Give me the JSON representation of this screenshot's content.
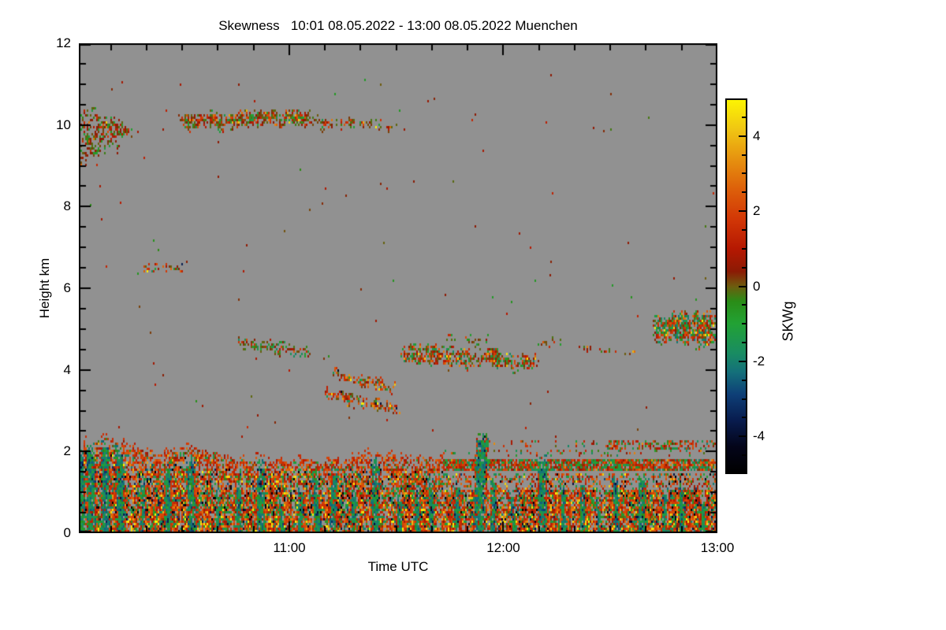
{
  "colors": {
    "page_background": "#ffffff",
    "plot_background": "#919191",
    "frame": "#000000",
    "text": "#000000"
  },
  "chart_data": {
    "type": "heatmap",
    "title": "Skewness   10:01 08.05.2022 - 13:00 08.05.2022 Muenchen",
    "site": "Muenchen",
    "time_start": "10:01 08.05.2022",
    "time_end": "13:00 08.05.2022",
    "xlabel": "Time UTC",
    "ylabel": "Height km",
    "x_range_minutes_utc": [
      601,
      780
    ],
    "x_ticks": [
      {
        "minute": 660,
        "label": "11:00"
      },
      {
        "minute": 720,
        "label": "12:00"
      },
      {
        "minute": 780,
        "label": "13:00"
      }
    ],
    "x_minor_step_minutes": 10,
    "y_range_km": [
      0,
      12
    ],
    "y_ticks": [
      {
        "km": 0,
        "label": "0"
      },
      {
        "km": 2,
        "label": "2"
      },
      {
        "km": 4,
        "label": "4"
      },
      {
        "km": 6,
        "label": "6"
      },
      {
        "km": 8,
        "label": "8"
      },
      {
        "km": 10,
        "label": "10"
      },
      {
        "km": 12,
        "label": "12"
      }
    ],
    "y_minor_step_km": 0.5,
    "colorbar": {
      "label": "SKWg",
      "range": [
        -5,
        5
      ],
      "ticks": [
        {
          "value": 4,
          "label": "4"
        },
        {
          "value": 2,
          "label": "2"
        },
        {
          "value": 0,
          "label": "0"
        },
        {
          "value": -2,
          "label": "-2"
        },
        {
          "value": -4,
          "label": "-4"
        }
      ],
      "minor_step": 0.5,
      "gradient_stops": [
        [
          0.0,
          "#000000"
        ],
        [
          0.07,
          "#04051a"
        ],
        [
          0.14,
          "#081c4e"
        ],
        [
          0.21,
          "#0e3f77"
        ],
        [
          0.27,
          "#14707a"
        ],
        [
          0.32,
          "#198c62"
        ],
        [
          0.4,
          "#22a234"
        ],
        [
          0.46,
          "#2a8c17"
        ],
        [
          0.5,
          "#6e5c0e"
        ],
        [
          0.54,
          "#8c1a04"
        ],
        [
          0.6,
          "#b51802"
        ],
        [
          0.68,
          "#d23706"
        ],
        [
          0.76,
          "#dd5f0a"
        ],
        [
          0.84,
          "#e6910f"
        ],
        [
          0.92,
          "#f0c513"
        ],
        [
          1.0,
          "#fcf403"
        ]
      ]
    },
    "clouds": [
      {
        "t0": 601,
        "t1": 616,
        "top0": 10.45,
        "top1": 10.05,
        "bot0": 9.05,
        "bot1": 9.75,
        "density": 0.5,
        "palette": "olive",
        "ragged_bottom": 0.6
      },
      {
        "t0": 629,
        "t1": 666,
        "top0": 10.3,
        "top1": 10.35,
        "bot0": 9.95,
        "bot1": 10.0,
        "density": 0.8,
        "palette": "oliveRed",
        "ragged_bottom": 0.15
      },
      {
        "t0": 666,
        "t1": 686,
        "top0": 10.22,
        "top1": 10.12,
        "bot0": 9.92,
        "bot1": 9.96,
        "density": 0.6,
        "palette": "oliveRed",
        "ragged_bottom": 0.1
      },
      {
        "t0": 686,
        "t1": 693,
        "top0": 10.02,
        "top1": 9.96,
        "bot0": 9.86,
        "bot1": 9.86,
        "density": 0.5,
        "palette": "olive",
        "ragged_bottom": 0
      },
      {
        "t0": 619,
        "t1": 631,
        "top0": 6.62,
        "top1": 6.55,
        "bot0": 6.38,
        "bot1": 6.45,
        "density": 0.7,
        "palette": "redOlive",
        "ragged_bottom": 0
      },
      {
        "t0": 645,
        "t1": 666,
        "top0": 4.85,
        "top1": 4.55,
        "bot0": 4.55,
        "bot1": 4.3,
        "density": 0.65,
        "palette": "greenOlive",
        "ragged_bottom": 0.1
      },
      {
        "t0": 672,
        "t1": 690,
        "top0": 4.05,
        "top1": 3.65,
        "bot0": 3.82,
        "bot1": 3.42,
        "density": 0.7,
        "palette": "redOlive",
        "ragged_bottom": 0.05
      },
      {
        "t0": 670,
        "t1": 691,
        "top0": 3.55,
        "top1": 3.1,
        "bot0": 3.32,
        "bot1": 2.87,
        "density": 0.7,
        "palette": "redOlive",
        "ragged_bottom": 0.05
      },
      {
        "t0": 691,
        "t1": 730,
        "top0": 4.68,
        "top1": 4.35,
        "bot0": 4.22,
        "bot1": 4.05,
        "density": 0.72,
        "palette": "oliveRedGreen",
        "ragged_bottom": 0.15
      },
      {
        "t0": 703,
        "t1": 716,
        "top0": 4.92,
        "top1": 4.75,
        "bot0": 4.68,
        "bot1": 4.45,
        "density": 0.22,
        "palette": "olive",
        "ragged_bottom": 0
      },
      {
        "t0": 729,
        "t1": 757,
        "top0": 4.8,
        "top1": 4.45,
        "bot0": 4.62,
        "bot1": 4.3,
        "density": 0.3,
        "palette": "oliveRed",
        "ragged_bottom": 0
      },
      {
        "t0": 762,
        "t1": 780,
        "top0": 5.35,
        "top1": 5.45,
        "bot0": 4.75,
        "bot1": 4.6,
        "density": 0.78,
        "palette": "greenRed",
        "ragged_bottom": 0.2
      }
    ],
    "boundary_layer": {
      "top_profile": [
        [
          601,
          2.2
        ],
        [
          612,
          2.25
        ],
        [
          622,
          1.95
        ],
        [
          632,
          2.1
        ],
        [
          645,
          1.85
        ],
        [
          655,
          1.8
        ],
        [
          665,
          1.75
        ],
        [
          675,
          1.8
        ],
        [
          685,
          1.95
        ],
        [
          695,
          1.8
        ],
        [
          703,
          1.85
        ]
      ],
      "right_section_start_minute": 703,
      "right_layers": [
        {
          "t0": 703,
          "t1": 780,
          "h0": 0,
          "h1": 1.05,
          "density": 0.93,
          "palette": "blCore"
        },
        {
          "t0": 703,
          "t1": 780,
          "h0": 1.05,
          "h1": 1.45,
          "density": 0.38,
          "palette": "blCore"
        },
        {
          "t0": 703,
          "t1": 780,
          "h0": 1.5,
          "h1": 1.8,
          "density": 0.85,
          "palette": "redGreen"
        },
        {
          "t0": 703,
          "t1": 780,
          "h0": 1.85,
          "h1": 2.05,
          "density": 0.1,
          "palette": "redGreen"
        },
        {
          "t0": 749,
          "t1": 780,
          "h0": 2.05,
          "h1": 2.3,
          "density": 0.42,
          "palette": "redGreen"
        },
        {
          "t0": 712,
          "t1": 749,
          "h0": 2.1,
          "h1": 2.3,
          "density": 0.12,
          "palette": "redGreen"
        }
      ],
      "plumes": [
        {
          "t": 602,
          "w": 2,
          "top": 2.1
        },
        {
          "t": 604.5,
          "w": 2.5,
          "top": 2.2
        },
        {
          "t": 608.5,
          "w": 3,
          "top": 2.3
        },
        {
          "t": 613,
          "w": 2.5,
          "top": 2.15
        },
        {
          "t": 619,
          "w": 1.5,
          "top": 1.4
        },
        {
          "t": 626,
          "w": 2,
          "top": 1.6
        },
        {
          "t": 633,
          "w": 2.5,
          "top": 1.85
        },
        {
          "t": 640,
          "w": 1.5,
          "top": 1.1
        },
        {
          "t": 646,
          "w": 1.5,
          "top": 1.3
        },
        {
          "t": 652,
          "w": 2.5,
          "top": 1.8
        },
        {
          "t": 658,
          "w": 1.5,
          "top": 0.9
        },
        {
          "t": 663,
          "w": 1.5,
          "top": 1.2
        },
        {
          "t": 668,
          "w": 2,
          "top": 1.5
        },
        {
          "t": 672,
          "w": 2,
          "top": 1.65
        },
        {
          "t": 678,
          "w": 1.5,
          "top": 1.1
        },
        {
          "t": 684,
          "w": 2.5,
          "top": 1.85
        },
        {
          "t": 691,
          "w": 1.5,
          "top": 1.0
        },
        {
          "t": 696,
          "w": 1.5,
          "top": 1.2
        },
        {
          "t": 700,
          "w": 1.5,
          "top": 1.35
        },
        {
          "t": 707,
          "w": 1.5,
          "top": 1.3
        },
        {
          "t": 713,
          "w": 3.5,
          "top": 2.45
        },
        {
          "t": 717,
          "w": 1.5,
          "top": 1.45
        },
        {
          "t": 723,
          "w": 1.5,
          "top": 1.1
        },
        {
          "t": 731,
          "w": 2.5,
          "top": 1.95
        },
        {
          "t": 737,
          "w": 1.5,
          "top": 1.2
        },
        {
          "t": 742,
          "w": 1.5,
          "top": 1.35
        },
        {
          "t": 747,
          "w": 1,
          "top": 1.0
        },
        {
          "t": 752,
          "w": 1.5,
          "top": 1.5
        },
        {
          "t": 759,
          "w": 2.5,
          "top": 1.45
        },
        {
          "t": 765,
          "w": 1.5,
          "top": 1.1
        },
        {
          "t": 770,
          "w": 1.5,
          "top": 1.25
        },
        {
          "t": 776,
          "w": 1.5,
          "top": 1.0
        }
      ]
    },
    "isolated_dots": [
      [
        712,
        10.28,
        0.4
      ],
      [
        745,
        9.95,
        0.5
      ],
      [
        748,
        9.88,
        0.3
      ],
      [
        640,
        9.6,
        0.4
      ],
      [
        610,
        10.9,
        0.3
      ],
      [
        669,
        8.1,
        0.3
      ],
      [
        712,
        7.55,
        0.4
      ],
      [
        648,
        2.62,
        1.5
      ],
      [
        700,
        2.55,
        0.8
      ],
      [
        726,
        2.6,
        1.2
      ],
      [
        760,
        3.1,
        0.5
      ],
      [
        680,
        6.0,
        0.3
      ],
      [
        733,
        6.35,
        0.4
      ]
    ],
    "sparse_speckle_density": 0.0015
  }
}
